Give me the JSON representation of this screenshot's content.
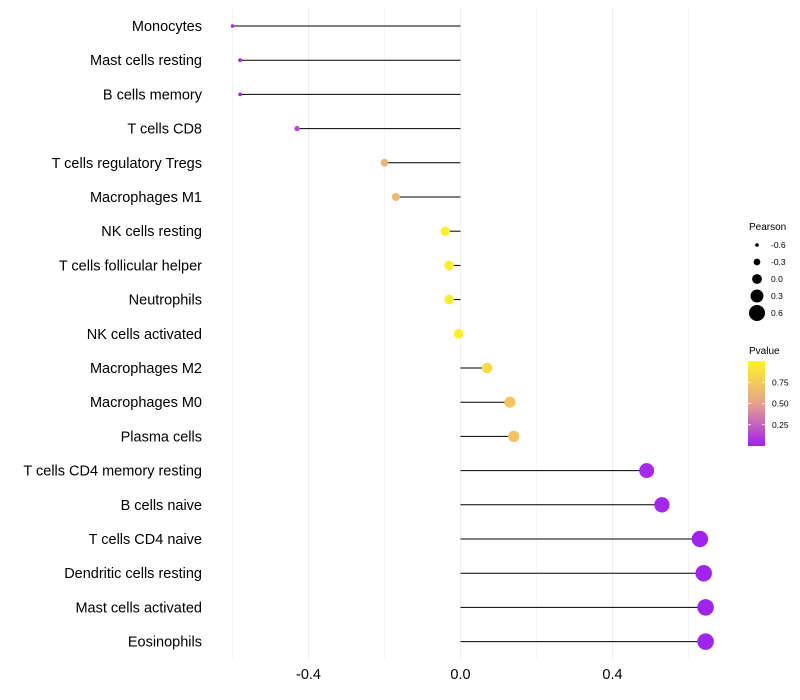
{
  "chart_data": {
    "type": "lollipop",
    "title": "",
    "xlabel": "",
    "ylabel": "",
    "xlim": [
      -0.6,
      0.65
    ],
    "xticks": [
      -0.4,
      0.0,
      0.4
    ],
    "xtick_labels": [
      "-0.4",
      "0.0",
      "0.4"
    ],
    "grid": true,
    "categories": [
      "Monocytes",
      "Mast cells resting",
      "B cells memory",
      "T cells CD8",
      "T cells regulatory  Tregs",
      "Macrophages M1",
      "NK cells resting",
      "T cells follicular helper",
      "Neutrophils",
      "NK cells activated",
      "Macrophages M2",
      "Macrophages M0",
      "Plasma cells",
      "T cells CD4 memory resting",
      "B cells naive",
      "T cells CD4 naive",
      "Dendritic cells resting",
      "Mast cells activated",
      "Eosinophils"
    ],
    "pearson": [
      -0.6,
      -0.58,
      -0.58,
      -0.43,
      -0.2,
      -0.17,
      -0.04,
      -0.03,
      -0.03,
      -0.005,
      0.07,
      0.13,
      0.14,
      0.49,
      0.53,
      0.63,
      0.64,
      0.645,
      0.645
    ],
    "pvalue": [
      0.02,
      0.02,
      0.03,
      0.15,
      0.6,
      0.65,
      0.98,
      0.97,
      0.96,
      0.99,
      0.85,
      0.72,
      0.7,
      0.04,
      0.03,
      0.01,
      0.01,
      0.01,
      0.01
    ],
    "legend_size": {
      "title": "Pearson",
      "labels": [
        "-0.6",
        "-0.3",
        "0.0",
        "0.3",
        "0.6"
      ],
      "values": [
        -0.6,
        -0.3,
        0.0,
        0.3,
        0.6
      ]
    },
    "legend_color": {
      "title": "Pvalue",
      "labels": [
        "0.75",
        "0.50",
        "0.25"
      ],
      "values": [
        0.75,
        0.5,
        0.25
      ],
      "range": [
        0.0,
        1.0
      ],
      "low_color": "#a020f0",
      "mid_color": "#e7a28b",
      "high_color": "#fff22a"
    },
    "colors": {
      "segment": "#000000",
      "grid": "#eeeeee",
      "label": "#000000"
    }
  }
}
